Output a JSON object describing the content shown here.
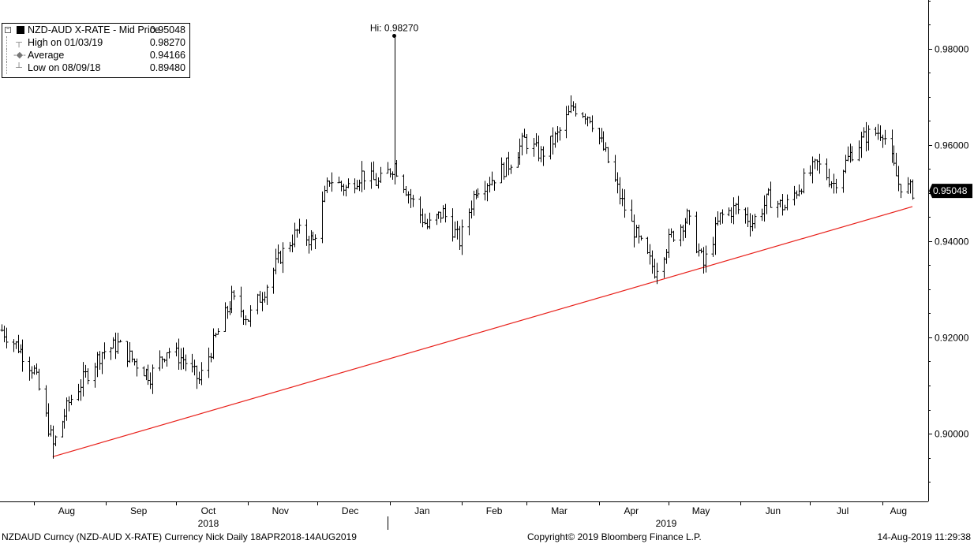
{
  "legend": {
    "title": "NZD-AUD X-RATE - Mid Price",
    "title_value": "0.95048",
    "rows": [
      {
        "label": "High on 01/03/19",
        "value": "0.98270",
        "icon": "high-marker-icon"
      },
      {
        "label": "Average",
        "value": "0.94166",
        "icon": "average-marker-icon"
      },
      {
        "label": "Low on 08/09/18",
        "value": "0.89480",
        "icon": "low-marker-icon"
      }
    ]
  },
  "footer": {
    "left": "NZDAUD Curncy (NZD-AUD X-RATE) Currency Nick  Daily 18APR2018-14AUG2019",
    "center": "Copyright© 2019 Bloomberg Finance L.P.",
    "right": "14-Aug-2019 11:29:38"
  },
  "chart_data": {
    "type": "line",
    "title": "NZD-AUD X-RATE - Mid Price",
    "xlabel": "",
    "ylabel": "",
    "x_range": [
      "2018-07-18",
      "2019-08-14"
    ],
    "ylim": [
      0.8875,
      0.9915
    ],
    "y_ticks": [
      "0.90000",
      "0.92000",
      "0.94000",
      "0.96000",
      "0.98000"
    ],
    "y_tick_values": [
      0.9,
      0.92,
      0.94,
      0.96,
      0.98
    ],
    "x_month_labels": [
      "Aug",
      "Sep",
      "Oct",
      "Nov",
      "Dec",
      "Jan",
      "Feb",
      "Mar",
      "Apr",
      "May",
      "Jun",
      "Jul",
      "Aug"
    ],
    "x_month_dates": [
      "2018-08-15",
      "2018-09-15",
      "2018-10-15",
      "2018-11-15",
      "2018-12-15",
      "2019-01-15",
      "2019-02-15",
      "2019-03-15",
      "2019-04-15",
      "2019-05-15",
      "2019-06-15",
      "2019-07-15",
      "2019-08-08"
    ],
    "x_year_labels": [
      {
        "label": "2018",
        "date": "2018-10-15"
      },
      {
        "label": "2019",
        "date": "2019-04-30"
      }
    ],
    "year_divider_date": "2018-12-31",
    "last_price": {
      "value": 0.95048,
      "label": "0.95048"
    },
    "high_annotation": {
      "label": "Hi: 0.98270",
      "value": 0.9827,
      "date": "2019-01-03"
    },
    "average": 0.94166,
    "low": {
      "value": 0.8948,
      "date": "2018-08-09"
    },
    "trendline": {
      "color": "#e8201a",
      "points": [
        {
          "date": "2018-08-09",
          "value": 0.8952
        },
        {
          "date": "2019-08-14",
          "value": 0.9472
        }
      ]
    },
    "colors": {
      "price_bars": "#000000",
      "trendline": "#e8201a",
      "last_price_box": "#000000"
    },
    "series": [
      {
        "name": "NZD-AUD X-RATE - Mid Price",
        "dates": [
          "2018-07-18",
          "2018-07-25",
          "2018-08-01",
          "2018-08-09",
          "2018-08-16",
          "2018-08-23",
          "2018-08-30",
          "2018-09-06",
          "2018-09-13",
          "2018-09-20",
          "2018-09-27",
          "2018-10-04",
          "2018-10-11",
          "2018-10-18",
          "2018-10-25",
          "2018-11-01",
          "2018-11-08",
          "2018-11-15",
          "2018-11-22",
          "2018-11-29",
          "2018-12-06",
          "2018-12-13",
          "2018-12-20",
          "2018-12-27",
          "2019-01-03",
          "2019-01-10",
          "2019-01-17",
          "2019-01-24",
          "2019-01-31",
          "2019-02-07",
          "2019-02-14",
          "2019-02-21",
          "2019-02-28",
          "2019-03-07",
          "2019-03-14",
          "2019-03-21",
          "2019-03-28",
          "2019-04-04",
          "2019-04-11",
          "2019-04-18",
          "2019-04-25",
          "2019-05-02",
          "2019-05-09",
          "2019-05-16",
          "2019-05-23",
          "2019-05-30",
          "2019-06-06",
          "2019-06-13",
          "2019-06-20",
          "2019-06-27",
          "2019-07-04",
          "2019-07-11",
          "2019-07-18",
          "2019-07-25",
          "2019-08-01",
          "2019-08-08",
          "2019-08-14"
        ],
        "values": [
          0.9215,
          0.918,
          0.913,
          0.8975,
          0.9065,
          0.912,
          0.917,
          0.9185,
          0.915,
          0.912,
          0.9175,
          0.9155,
          0.911,
          0.92,
          0.928,
          0.924,
          0.93,
          0.937,
          0.942,
          0.94,
          0.953,
          0.951,
          0.954,
          0.952,
          0.956,
          0.949,
          0.943,
          0.946,
          0.94,
          0.951,
          0.953,
          0.956,
          0.961,
          0.958,
          0.962,
          0.968,
          0.966,
          0.958,
          0.948,
          0.94,
          0.934,
          0.941,
          0.945,
          0.935,
          0.945,
          0.947,
          0.944,
          0.949,
          0.947,
          0.952,
          0.956,
          0.952,
          0.958,
          0.962,
          0.963,
          0.952,
          0.95048
        ]
      }
    ]
  }
}
